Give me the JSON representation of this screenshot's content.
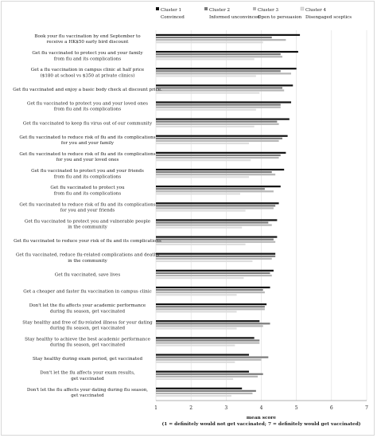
{
  "chart_data": {
    "type": "bar",
    "orientation": "horizontal",
    "xlabel": "mean score",
    "xnote": "(1 = definitely would not get vaccinated; 7 = definitely would get vaccinated)",
    "xlim": [
      1,
      7
    ],
    "xticks": [
      1,
      2,
      3,
      4,
      5,
      6,
      7
    ],
    "grid": true,
    "legend_position": "top",
    "series": [
      {
        "name": "Cluster 1",
        "subtitle": "Convinced",
        "color": "#111111",
        "values": [
          5.1,
          5.05,
          5.0,
          4.9,
          4.85,
          4.8,
          4.75,
          4.7,
          4.65,
          4.55,
          4.5,
          4.45,
          4.45,
          4.4,
          4.35,
          4.25,
          4.15,
          3.95,
          3.8,
          3.65,
          3.65,
          3.45
        ]
      },
      {
        "name": "Cluster 2",
        "subtitle": "Informed unconvinced",
        "color": "#7a7a7a",
        "values": [
          4.3,
          4.55,
          4.55,
          4.6,
          4.55,
          4.45,
          4.6,
          4.55,
          4.3,
          4.1,
          4.4,
          4.2,
          4.35,
          4.4,
          4.25,
          4.05,
          4.1,
          4.25,
          3.95,
          4.2,
          4.05,
          3.85
        ]
      },
      {
        "name": "Cluster 3",
        "subtitle": "Open to persuasion",
        "color": "#b5b5b5",
        "values": [
          4.7,
          4.6,
          4.85,
          4.65,
          4.55,
          4.5,
          4.5,
          4.5,
          4.4,
          4.35,
          4.35,
          4.3,
          4.4,
          4.3,
          4.3,
          4.1,
          4.1,
          4.05,
          3.95,
          4.0,
          3.9,
          3.75
        ]
      },
      {
        "name": "Cluster 4",
        "subtitle": "Disengaged sceptics",
        "color": "#dddddd",
        "values": [
          4.05,
          3.8,
          3.85,
          3.95,
          3.85,
          3.8,
          3.65,
          3.7,
          3.65,
          3.4,
          3.55,
          3.45,
          3.55,
          3.75,
          3.5,
          3.3,
          3.3,
          3.3,
          3.25,
          3.25,
          3.2,
          3.15
        ]
      }
    ],
    "categories": [
      [
        "Book your flu vaccination by end September to",
        "receive a HK$50 early bird discount"
      ],
      [
        "Get flu vaccinated to protect you and your family",
        "from flu and its complications"
      ],
      [
        "Get a flu vaccination in campus clinic at half price",
        "($180 at school vs $350 at private clinics)"
      ],
      [
        "Get flu vaccinated and enjoy a basic body check at discount price."
      ],
      [
        "Get flu vaccinated to protect you and your loved ones",
        "from flu and its complications"
      ],
      [
        "Get flu vaccinated to keep flu virus out of our community"
      ],
      [
        "Get flu vaccinated to reduce risk of flu and its complications",
        "for you and your family"
      ],
      [
        "Get flu vaccinated to reduce risk of flu and its complications",
        "for you and your loved ones"
      ],
      [
        "Get flu vaccinated to protect you and your friends",
        "from flu and its complications"
      ],
      [
        "Get flu vaccinated to protect you",
        "from flu and its complications"
      ],
      [
        "Get flu vaccinated to reduce risk of flu and its complications",
        "for you and your friends"
      ],
      [
        "Get flu vaccinated to protect you and vulnerable people",
        "in the community"
      ],
      [
        "Get flu vaccinated to reduce your risk of flu and its complications"
      ],
      [
        "Get flu vaccinated, reduce flu-related complications and deaths",
        "in the community"
      ],
      [
        "Get flu vaccinated, save lives"
      ],
      [
        "Get a cheaper and faster flu vaccination in campus clinic"
      ],
      [
        "Don't let the flu affects your academic performance",
        "during flu season, get vaccinated"
      ],
      [
        "Stay healthy and free of flu-related illness for your dating",
        "during flu season, get vaccinated"
      ],
      [
        "Stay healthy to achieve the best academic performance",
        "during flu season, get vaccinated"
      ],
      [
        "Stay healthy during exam period, get vaccinated"
      ],
      [
        "Don't let the flu affects your exam results,",
        "get vaccinated"
      ],
      [
        "Don't let the flu affects your dating during flu season,",
        "get vaccinated"
      ]
    ]
  }
}
